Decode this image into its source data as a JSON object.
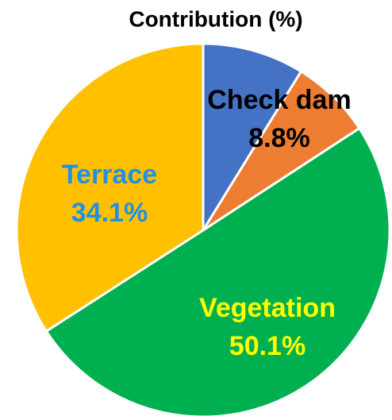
{
  "chart_data": {
    "type": "pie",
    "title": "Contribution (%)",
    "categories": [
      "Check dam",
      null,
      "Vegetation",
      "Terrace"
    ],
    "values": [
      8.8,
      7.0,
      50.1,
      34.1
    ],
    "value_labels": [
      "8.8%",
      null,
      "50.1%",
      "34.1%"
    ],
    "colors": [
      "#4472c4",
      "#ed7d31",
      "#00b050",
      "#ffc000"
    ],
    "label_colors": [
      "#000000",
      null,
      "#ffff00",
      "#1e90e8"
    ]
  }
}
